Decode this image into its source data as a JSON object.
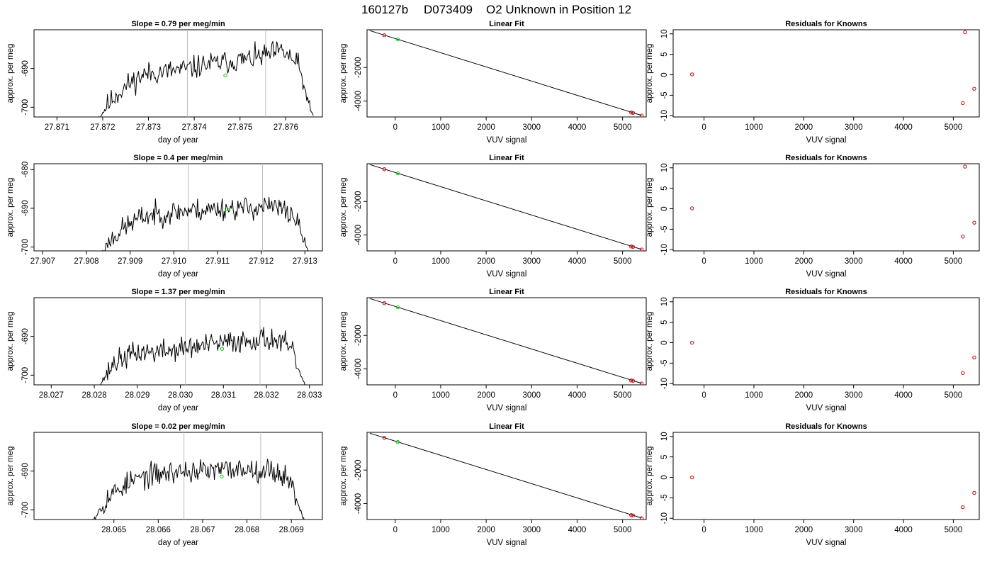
{
  "figure": {
    "title_run": "160127b",
    "title_id": "D073409",
    "title_desc": "O2 Unknown in Position  12"
  },
  "colors": {
    "trace": "#000000",
    "known_point": "#cc0000",
    "unknown_point": "#00cc00",
    "marker_line": "#bbbbbb",
    "frame": "#000000"
  },
  "chart_data": [
    {
      "type": "line",
      "row": 0,
      "col": 0,
      "title": "Slope =  0.79  per meg/min",
      "xlabel": "day of year",
      "ylabel": "approx. per meg",
      "xlim": [
        27.8705,
        27.8768
      ],
      "ylim": [
        -702.5,
        -680.0
      ],
      "xticks": [
        27.871,
        27.872,
        27.873,
        27.874,
        27.875,
        27.876
      ],
      "xtick_labels": [
        "27.871",
        "27.872",
        "27.873",
        "27.874",
        "27.875",
        "27.876"
      ],
      "yticks": [
        -700,
        -690
      ],
      "ytick_labels": [
        "-700",
        "-690"
      ],
      "trace": {
        "x_start": 27.8719,
        "x_end": 27.8766,
        "levels": [
          -703,
          -697.5,
          -694,
          -691.5,
          -691,
          -690.5,
          -690,
          -689,
          -688.5,
          -688,
          -687.5,
          -686.5,
          -685.5,
          -689,
          -703
        ],
        "seed": 11
      },
      "vlines": [
        27.87385,
        27.87556
      ],
      "unknown_point": {
        "x": 27.87468,
        "y": -691.8
      }
    },
    {
      "type": "scatter",
      "row": 0,
      "col": 1,
      "title": "Linear Fit",
      "xlabel": "VUV signal",
      "ylabel": "approx. per meg",
      "xlim": [
        -620,
        5520
      ],
      "ylim": [
        -4950,
        250
      ],
      "xticks": [
        0,
        1000,
        2000,
        3000,
        4000,
        5000
      ],
      "xtick_labels": [
        "0",
        "1000",
        "2000",
        "3000",
        "4000",
        "5000"
      ],
      "yticks": [
        -4000,
        -2000
      ],
      "ytick_labels": [
        "-4000",
        "-2000"
      ],
      "fit_line": {
        "x": [
          -560,
          5420
        ],
        "y": [
          200,
          -4860
        ]
      },
      "known_points": {
        "x": [
          -240,
          5190,
          5230,
          5420
        ],
        "y": [
          -78,
          -4690,
          -4712,
          -4870
        ]
      },
      "unknown_points": {
        "x": [
          55
        ],
        "y": [
          -325
        ]
      }
    },
    {
      "type": "scatter",
      "row": 0,
      "col": 2,
      "title": "Residuals for Knowns",
      "xlabel": "VUV signal",
      "ylabel": "approx. per meg",
      "xlim": [
        -620,
        5520
      ],
      "ylim": [
        -10.3,
        11.0
      ],
      "xticks": [
        0,
        1000,
        2000,
        3000,
        4000,
        5000
      ],
      "xtick_labels": [
        "0",
        "1000",
        "2000",
        "3000",
        "4000",
        "5000"
      ],
      "yticks": [
        -10,
        -5,
        0,
        5,
        10
      ],
      "ytick_labels": [
        "-10",
        "-5",
        "0",
        "5",
        "10"
      ],
      "known_points": {
        "x": [
          -240,
          5190,
          5235,
          5420
        ],
        "y": [
          0.1,
          -6.9,
          10.4,
          -3.4
        ]
      }
    },
    {
      "type": "line",
      "row": 1,
      "col": 0,
      "title": "Slope =  0.4  per meg/min",
      "xlabel": "day of year",
      "ylabel": "approx. per meg",
      "xlim": [
        27.9068,
        27.9134
      ],
      "ylim": [
        -701.0,
        -678.5
      ],
      "xticks": [
        27.907,
        27.908,
        27.909,
        27.91,
        27.911,
        27.912,
        27.913
      ],
      "xtick_labels": [
        "27.907",
        "27.908",
        "27.909",
        "27.910",
        "27.911",
        "27.912",
        "27.913"
      ],
      "yticks": [
        -700,
        -690,
        -680
      ],
      "ytick_labels": [
        "-700",
        "-690",
        "-680"
      ],
      "trace": {
        "x_start": 27.9083,
        "x_end": 27.9131,
        "levels": [
          -702,
          -697,
          -694,
          -692,
          -691.5,
          -691,
          -690.5,
          -690.5,
          -690,
          -690,
          -690,
          -689.5,
          -690,
          -692,
          -702
        ],
        "seed": 23
      },
      "vlines": [
        27.91033,
        27.91203
      ],
      "unknown_point": {
        "x": 27.91121,
        "y": -690.2
      }
    },
    {
      "type": "scatter",
      "row": 1,
      "col": 1,
      "title": "Linear Fit",
      "xlabel": "VUV signal",
      "ylabel": "approx. per meg",
      "xlim": [
        -620,
        5520
      ],
      "ylim": [
        -4950,
        250
      ],
      "xticks": [
        0,
        1000,
        2000,
        3000,
        4000,
        5000
      ],
      "xtick_labels": [
        "0",
        "1000",
        "2000",
        "3000",
        "4000",
        "5000"
      ],
      "yticks": [
        -4000,
        -2000
      ],
      "ytick_labels": [
        "-4000",
        "-2000"
      ],
      "fit_line": {
        "x": [
          -560,
          5420
        ],
        "y": [
          200,
          -4860
        ]
      },
      "known_points": {
        "x": [
          -240,
          5190,
          5230,
          5420
        ],
        "y": [
          -78,
          -4690,
          -4712,
          -4870
        ]
      },
      "unknown_points": {
        "x": [
          55
        ],
        "y": [
          -325
        ]
      }
    },
    {
      "type": "scatter",
      "row": 1,
      "col": 2,
      "title": "Residuals for Knowns",
      "xlabel": "VUV signal",
      "ylabel": "approx. per meg",
      "xlim": [
        -620,
        5520
      ],
      "ylim": [
        -10.3,
        11.0
      ],
      "xticks": [
        0,
        1000,
        2000,
        3000,
        4000,
        5000
      ],
      "xtick_labels": [
        "0",
        "1000",
        "2000",
        "3000",
        "4000",
        "5000"
      ],
      "yticks": [
        -10,
        -5,
        0,
        5,
        10
      ],
      "ytick_labels": [
        "-10",
        "-5",
        "0",
        "5",
        "10"
      ],
      "known_points": {
        "x": [
          -240,
          5190,
          5235,
          5420
        ],
        "y": [
          0.1,
          -6.8,
          10.3,
          -3.4
        ]
      }
    },
    {
      "type": "line",
      "row": 2,
      "col": 0,
      "title": "Slope =  1.37  per meg/min",
      "xlabel": "day of year",
      "ylabel": "approx. per meg",
      "xlim": [
        28.0266,
        28.0333
      ],
      "ylim": [
        -702.5,
        -680.0
      ],
      "xticks": [
        28.027,
        28.028,
        28.029,
        28.03,
        28.031,
        28.032,
        28.033
      ],
      "xtick_labels": [
        "28.027",
        "28.028",
        "28.029",
        "28.030",
        "28.031",
        "28.032",
        "28.033"
      ],
      "yticks": [
        -700,
        -690
      ],
      "ytick_labels": [
        "-700",
        "-690"
      ],
      "trace": {
        "x_start": 28.0281,
        "x_end": 28.0329,
        "levels": [
          -703,
          -697,
          -695,
          -694,
          -694,
          -693.5,
          -693,
          -692.5,
          -692,
          -691.5,
          -691,
          -690.5,
          -691,
          -693,
          -703
        ],
        "seed": 37
      },
      "vlines": [
        28.03012,
        28.03185
      ],
      "unknown_point": {
        "x": 28.03097,
        "y": -693.2
      }
    },
    {
      "type": "scatter",
      "row": 2,
      "col": 1,
      "title": "Linear Fit",
      "xlabel": "VUV signal",
      "ylabel": "approx. per meg",
      "xlim": [
        -620,
        5520
      ],
      "ylim": [
        -4950,
        250
      ],
      "xticks": [
        0,
        1000,
        2000,
        3000,
        4000,
        5000
      ],
      "xtick_labels": [
        "0",
        "1000",
        "2000",
        "3000",
        "4000",
        "5000"
      ],
      "yticks": [
        -4000,
        -2000
      ],
      "ytick_labels": [
        "-4000",
        "-2000"
      ],
      "fit_line": {
        "x": [
          -560,
          5420
        ],
        "y": [
          200,
          -4860
        ]
      },
      "known_points": {
        "x": [
          -240,
          5190,
          5230,
          5420
        ],
        "y": [
          -78,
          -4690,
          -4712,
          -4870
        ]
      },
      "unknown_points": {
        "x": [
          55
        ],
        "y": [
          -325
        ]
      }
    },
    {
      "type": "scatter",
      "row": 2,
      "col": 2,
      "title": "Residuals for Knowns",
      "xlabel": "VUV signal",
      "ylabel": "approx. per meg",
      "xlim": [
        -620,
        5520
      ],
      "ylim": [
        -10.3,
        11.0
      ],
      "xticks": [
        0,
        1000,
        2000,
        3000,
        4000,
        5000
      ],
      "xtick_labels": [
        "0",
        "1000",
        "2000",
        "3000",
        "4000",
        "5000"
      ],
      "yticks": [
        -10,
        -5,
        0,
        5,
        10
      ],
      "ytick_labels": [
        "-10",
        "-5",
        "0",
        "5",
        "10"
      ],
      "known_points": {
        "x": [
          -240,
          5190,
          5420
        ],
        "y": [
          0.0,
          -7.4,
          -3.6
        ]
      }
    },
    {
      "type": "line",
      "row": 3,
      "col": 0,
      "title": "Slope =  0.02  per meg/min",
      "xlabel": "day of year",
      "ylabel": "approx. per meg",
      "xlim": [
        28.0632,
        28.0697
      ],
      "ylim": [
        -702.5,
        -680.0
      ],
      "xticks": [
        28.065,
        28.066,
        28.067,
        28.068,
        28.069
      ],
      "xtick_labels": [
        "28.065",
        "28.066",
        "28.067",
        "28.068",
        "28.069"
      ],
      "yticks": [
        -700,
        -690
      ],
      "ytick_labels": [
        "-700",
        "-690"
      ],
      "trace": {
        "x_start": 28.0645,
        "x_end": 28.0693,
        "levels": [
          -703,
          -697,
          -694,
          -692,
          -691,
          -690.5,
          -690,
          -690,
          -690,
          -689.5,
          -689.5,
          -689.5,
          -690,
          -692,
          -703
        ],
        "seed": 53
      },
      "vlines": [
        28.06658,
        28.06831
      ],
      "unknown_point": {
        "x": 28.06743,
        "y": -691.4
      }
    },
    {
      "type": "scatter",
      "row": 3,
      "col": 1,
      "title": "Linear Fit",
      "xlabel": "VUV signal",
      "ylabel": "approx. per meg",
      "xlim": [
        -620,
        5520
      ],
      "ylim": [
        -4950,
        250
      ],
      "xticks": [
        0,
        1000,
        2000,
        3000,
        4000,
        5000
      ],
      "xtick_labels": [
        "0",
        "1000",
        "2000",
        "3000",
        "4000",
        "5000"
      ],
      "yticks": [
        -4000,
        -2000
      ],
      "ytick_labels": [
        "-4000",
        "-2000"
      ],
      "fit_line": {
        "x": [
          -560,
          5420
        ],
        "y": [
          200,
          -4860
        ]
      },
      "known_points": {
        "x": [
          -240,
          5190,
          5230,
          5420
        ],
        "y": [
          -78,
          -4690,
          -4712,
          -4870
        ]
      },
      "unknown_points": {
        "x": [
          55
        ],
        "y": [
          -325
        ]
      }
    },
    {
      "type": "scatter",
      "row": 3,
      "col": 2,
      "title": "Residuals for Knowns",
      "xlabel": "VUV signal",
      "ylabel": "approx. per meg",
      "xlim": [
        -620,
        5520
      ],
      "ylim": [
        -10.3,
        11.0
      ],
      "xticks": [
        0,
        1000,
        2000,
        3000,
        4000,
        5000
      ],
      "xtick_labels": [
        "0",
        "1000",
        "2000",
        "3000",
        "4000",
        "5000"
      ],
      "yticks": [
        -10,
        -5,
        0,
        5,
        10
      ],
      "ytick_labels": [
        "-10",
        "-5",
        "0",
        "5",
        "10"
      ],
      "known_points": {
        "x": [
          -240,
          5190,
          5420
        ],
        "y": [
          0.0,
          -7.3,
          -3.8
        ]
      }
    }
  ]
}
